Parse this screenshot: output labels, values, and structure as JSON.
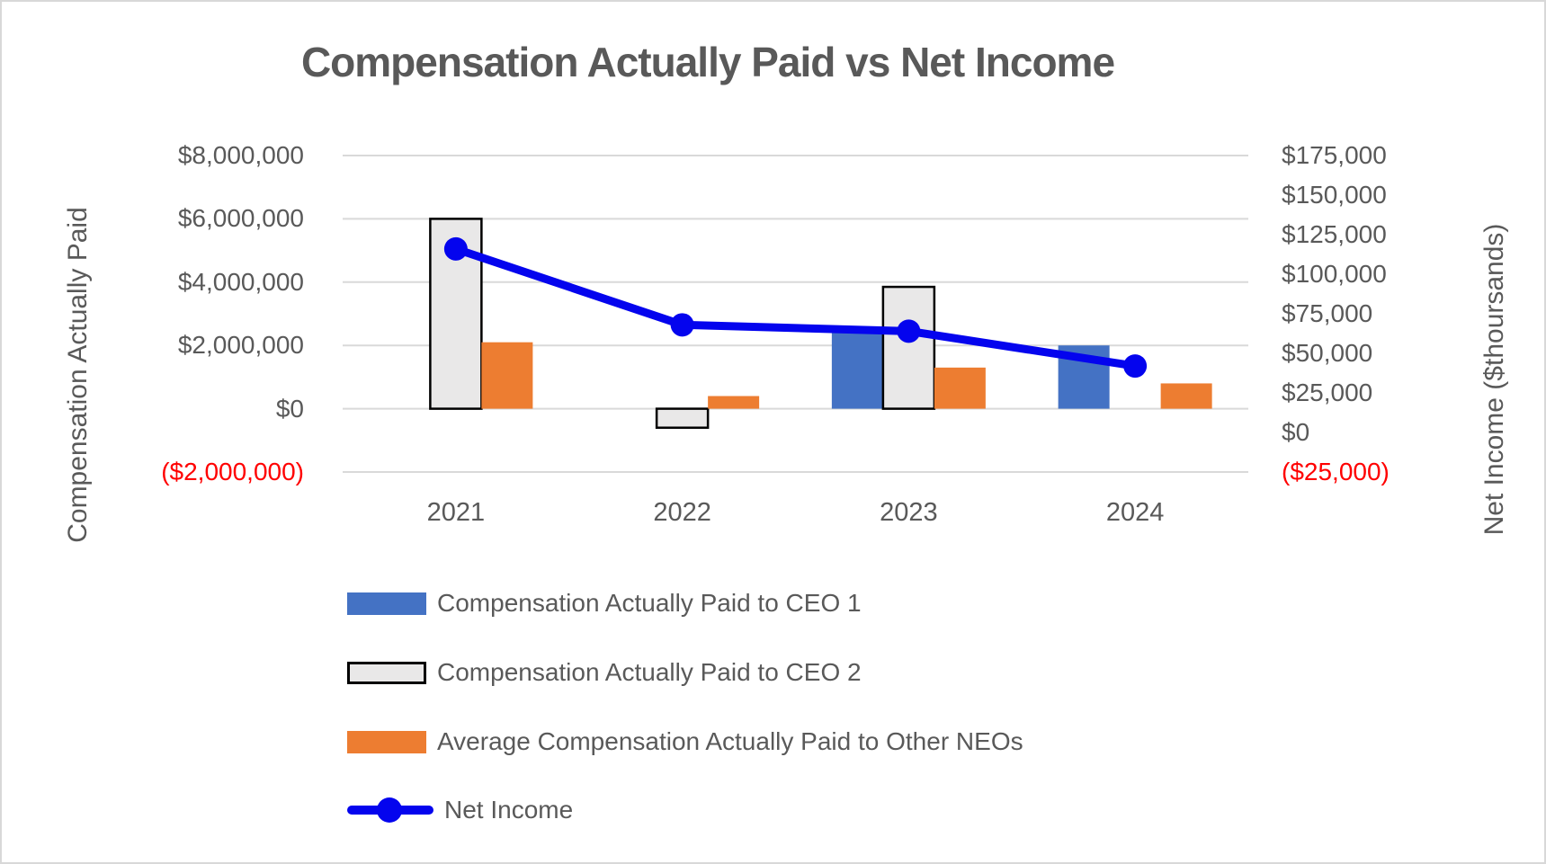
{
  "title": "Compensation Actually Paid vs Net Income",
  "chart_data": {
    "type": "combo-bar-line",
    "title": "Compensation Actually Paid vs Net Income",
    "categories": [
      "2021",
      "2022",
      "2023",
      "2024"
    ],
    "series": [
      {
        "name": "Compensation Actually Paid to CEO 1",
        "chart": "bar",
        "axis": "left",
        "color": "#4472C4",
        "values": [
          null,
          null,
          2400000,
          2000000
        ]
      },
      {
        "name": "Compensation Actually Paid to CEO 2",
        "chart": "bar",
        "axis": "left",
        "color": "#E9E8E8",
        "border_color": "#000000",
        "values": [
          6000000,
          -600000,
          3850000,
          null
        ]
      },
      {
        "name": "Average Compensation Actually Paid to Other NEOs",
        "chart": "bar",
        "axis": "left",
        "color": "#ED7D31",
        "values": [
          2100000,
          400000,
          1300000,
          800000
        ]
      },
      {
        "name": "Net Income",
        "chart": "line",
        "axis": "right",
        "color": "#0404EE",
        "values": [
          116000,
          68000,
          64000,
          42000
        ]
      }
    ],
    "left_axis": {
      "title": "Compensation Actually Paid",
      "min": -2000000,
      "max": 8000000,
      "ticks": [
        {
          "v": 8000000,
          "label": "$8,000,000"
        },
        {
          "v": 6000000,
          "label": "$6,000,000"
        },
        {
          "v": 4000000,
          "label": "$4,000,000"
        },
        {
          "v": 2000000,
          "label": "$2,000,000"
        },
        {
          "v": 0,
          "label": "$0"
        },
        {
          "v": -2000000,
          "label": "($2,000,000)",
          "negative": true
        }
      ]
    },
    "right_axis": {
      "title": "Net Income ($thoursands)",
      "min": -25000,
      "max": 175000,
      "ticks": [
        {
          "v": 175000,
          "label": "$175,000"
        },
        {
          "v": 150000,
          "label": "$150,000"
        },
        {
          "v": 125000,
          "label": "$125,000"
        },
        {
          "v": 100000,
          "label": "$100,000"
        },
        {
          "v": 75000,
          "label": "$75,000"
        },
        {
          "v": 50000,
          "label": "$50,000"
        },
        {
          "v": 25000,
          "label": "$25,000"
        },
        {
          "v": 0,
          "label": "$0"
        },
        {
          "v": -25000,
          "label": "($25,000)",
          "negative": true
        }
      ]
    },
    "grid": true,
    "gridline_color": "#D9D9D9",
    "text_color": "#595959",
    "negative_label_color": "#FF0000",
    "legend_position": "bottom-left",
    "legend_entries": [
      "Compensation Actually Paid to CEO 1",
      "Compensation Actually Paid to CEO 2",
      "Average Compensation Actually Paid to Other NEOs",
      "Net Income"
    ]
  }
}
